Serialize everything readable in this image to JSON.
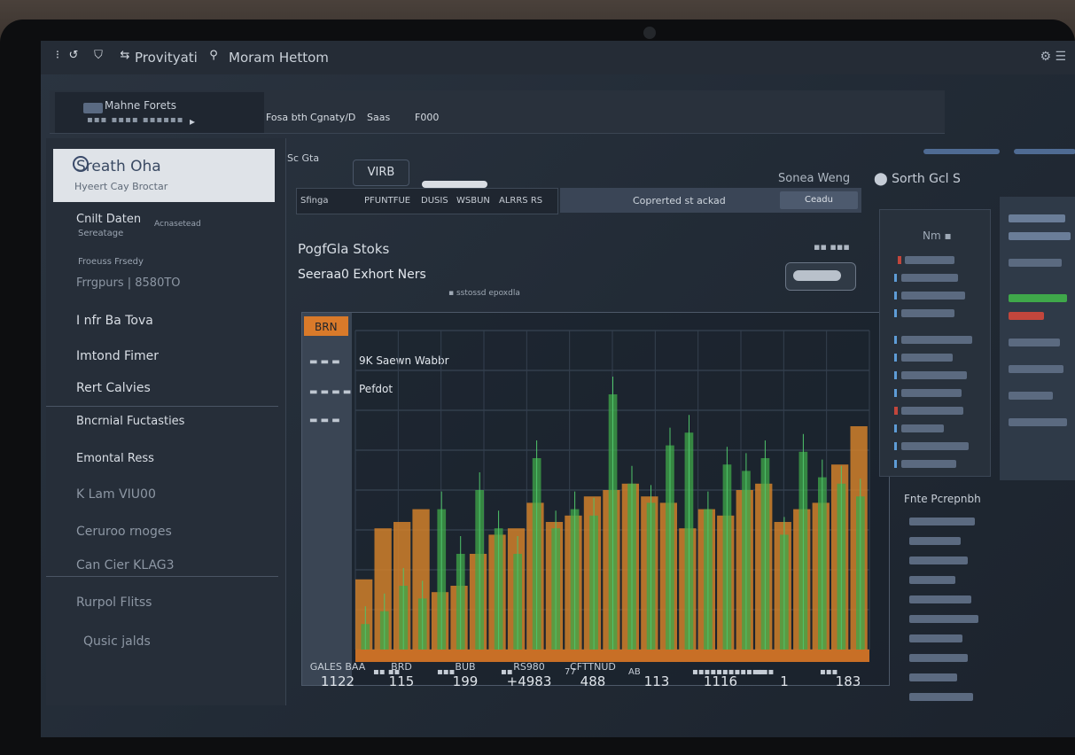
{
  "window": {
    "title_left": "Provityati",
    "title_right": "Moram Hettom",
    "right_icons": "⚙ ☰"
  },
  "subbar": {
    "brand_title": "Mahne Forets",
    "brand_dots": "▪▪▪ ▪▪▪▪ ▪▪▪▪▪▪",
    "menu_1": "Fosa bth",
    "menu_2": "Cgnaty/D",
    "menu_3": "Saas",
    "menu_4": "F000"
  },
  "sidebar": {
    "search_title": "Sreath Oha",
    "search_sub": "Hyeert Cay Broctar",
    "section_title": "Cnilt Daten",
    "section_sub": "Sereatage",
    "section_note": "Acnasetead",
    "small_1": "Froeuss Frsedy",
    "small_2": "Frrgpurs | 8580TO",
    "items": [
      "I nfr Ba Tova",
      "Imtond Fimer",
      "Rert Calvies",
      "Bncrnial Fuctasties",
      "Emontal Ress",
      "K Lam VIU00",
      "Ceruroo rnoges",
      "Can Cier KLAG3",
      "Rurpol Flitss",
      "Qusic jalds"
    ]
  },
  "toolbar": {
    "crumb": "Sc Gta",
    "vip_tab": "VIRB",
    "tabs": [
      "Sfinga",
      "PFUNTFUE",
      "DUSIS",
      "WSBUN",
      "ALRRS RS"
    ],
    "filter_label": "Coprerted st ackad",
    "filter_btn": "Ceadu",
    "right_label": "Sonea Weng",
    "right_label_2": "⬤ Sorth Gcl S"
  },
  "chart_header": {
    "title": "PogfGla Stoks",
    "subtitle": "Seeraa0 Exhort Ners",
    "subnote": "▪ sstossd epoxdla",
    "dots": "▪▪ ▪▪▪"
  },
  "chart_data": {
    "type": "bar",
    "title": "9K Saewn Wabbr",
    "subtitle": "Pefdot",
    "badge": "BRN",
    "left_labels": [
      "▬ ▬ ▬",
      "▬ ▬ ▬ ▬",
      "▬ ▬ ▬"
    ],
    "series": [
      {
        "name": "orange",
        "color": "#d0802a",
        "values": [
          22,
          38,
          40,
          44,
          18,
          20,
          30,
          36,
          38,
          46,
          40,
          42,
          48,
          50,
          52,
          48,
          46,
          38,
          44,
          42,
          50,
          52,
          40,
          44,
          46,
          58,
          70
        ]
      },
      {
        "name": "green",
        "color": "#3fa84a",
        "values": [
          8,
          12,
          20,
          16,
          44,
          30,
          50,
          38,
          30,
          60,
          38,
          44,
          42,
          80,
          52,
          46,
          64,
          68,
          44,
          58,
          56,
          60,
          36,
          62,
          54,
          52,
          48
        ]
      }
    ],
    "x_tick_labels": [
      "▪▪ ▪▪",
      "▪▪▪",
      "▪▪",
      "77",
      "AB",
      "▪▪▪▪▪▪▪▪▪▪▪▪",
      "▪▪▪",
      "▪▪▪"
    ],
    "ylim": [
      0,
      100
    ],
    "footer": [
      {
        "label": "GALES BAA",
        "value": "1122"
      },
      {
        "label": "BRD",
        "value": "115"
      },
      {
        "label": "BUB",
        "value": "199"
      },
      {
        "label": "RS980",
        "value": "+4983"
      },
      {
        "label": "CFTTNUD",
        "value": "488"
      },
      {
        "label": "",
        "value": "113"
      },
      {
        "label": "",
        "value": "1116"
      },
      {
        "label": "",
        "value": "1"
      },
      {
        "label": "",
        "value": "183"
      }
    ]
  },
  "right_panel": {
    "top_label": "Nm ▪",
    "items": [
      "▬▬▬▬",
      "▬▬▬▬▬",
      "▬▬▬▬▬",
      "▬▬▬▬",
      "▬▬▬▬▬"
    ],
    "lower_label": "Fnte Pcrepnbh"
  }
}
